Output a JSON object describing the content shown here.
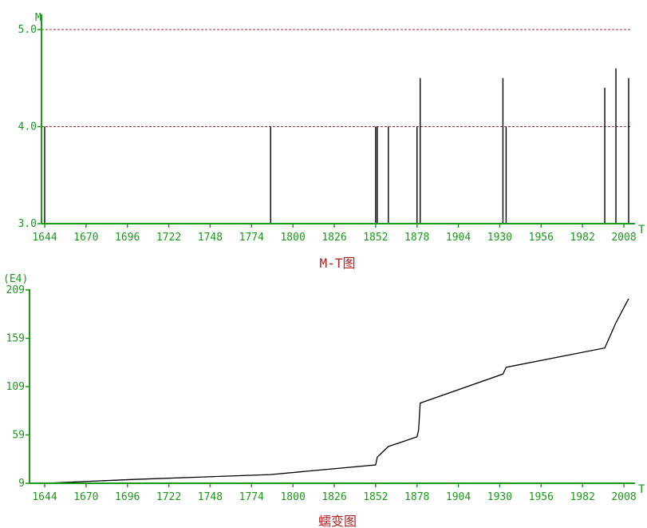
{
  "colors": {
    "axis": "#1a9a1a",
    "tick_label": "#1a9a1a",
    "title": "#b22222",
    "data": "#000000",
    "ref_line": "#a52a2a"
  },
  "chart_data": [
    {
      "type": "bar",
      "title": "M-T图",
      "xlabel": "T",
      "ylabel": "M",
      "xlim": [
        1644,
        2016
      ],
      "ylim": [
        3.0,
        5.0
      ],
      "x_ticks": [
        "1644",
        "1670",
        "1696",
        "1722",
        "1748",
        "1774",
        "1800",
        "1826",
        "1852",
        "1878",
        "1904",
        "1930",
        "1956",
        "1982",
        "2008"
      ],
      "y_ticks": [
        "3.0",
        "4.0",
        "5.0"
      ],
      "reference_lines": [
        4.0,
        5.0
      ],
      "grid": false,
      "x": [
        1644,
        1786,
        1852,
        1853,
        1860,
        1878,
        1880,
        1932,
        1934,
        1996,
        2003,
        2011
      ],
      "values": [
        4.0,
        4.0,
        4.0,
        4.0,
        4.0,
        4.0,
        4.5,
        4.5,
        4.0,
        4.4,
        4.6,
        4.5
      ]
    },
    {
      "type": "line",
      "title": "蠕变图",
      "xlabel": "T",
      "ylabel": "(E4)",
      "xlim": [
        1644,
        2016
      ],
      "ylim": [
        9,
        209
      ],
      "x_ticks": [
        "1644",
        "1670",
        "1696",
        "1722",
        "1748",
        "1774",
        "1800",
        "1826",
        "1852",
        "1878",
        "1904",
        "1930",
        "1956",
        "1982",
        "2008"
      ],
      "y_ticks": [
        "9",
        "59",
        "109",
        "159",
        "209"
      ],
      "grid": false,
      "x": [
        1644,
        1700,
        1786,
        1852,
        1853,
        1860,
        1878,
        1879,
        1880,
        1932,
        1934,
        1996,
        2003,
        2011
      ],
      "values": [
        9,
        13,
        18,
        28,
        36,
        47,
        57,
        64,
        92,
        122,
        129,
        149,
        175,
        200
      ]
    }
  ]
}
